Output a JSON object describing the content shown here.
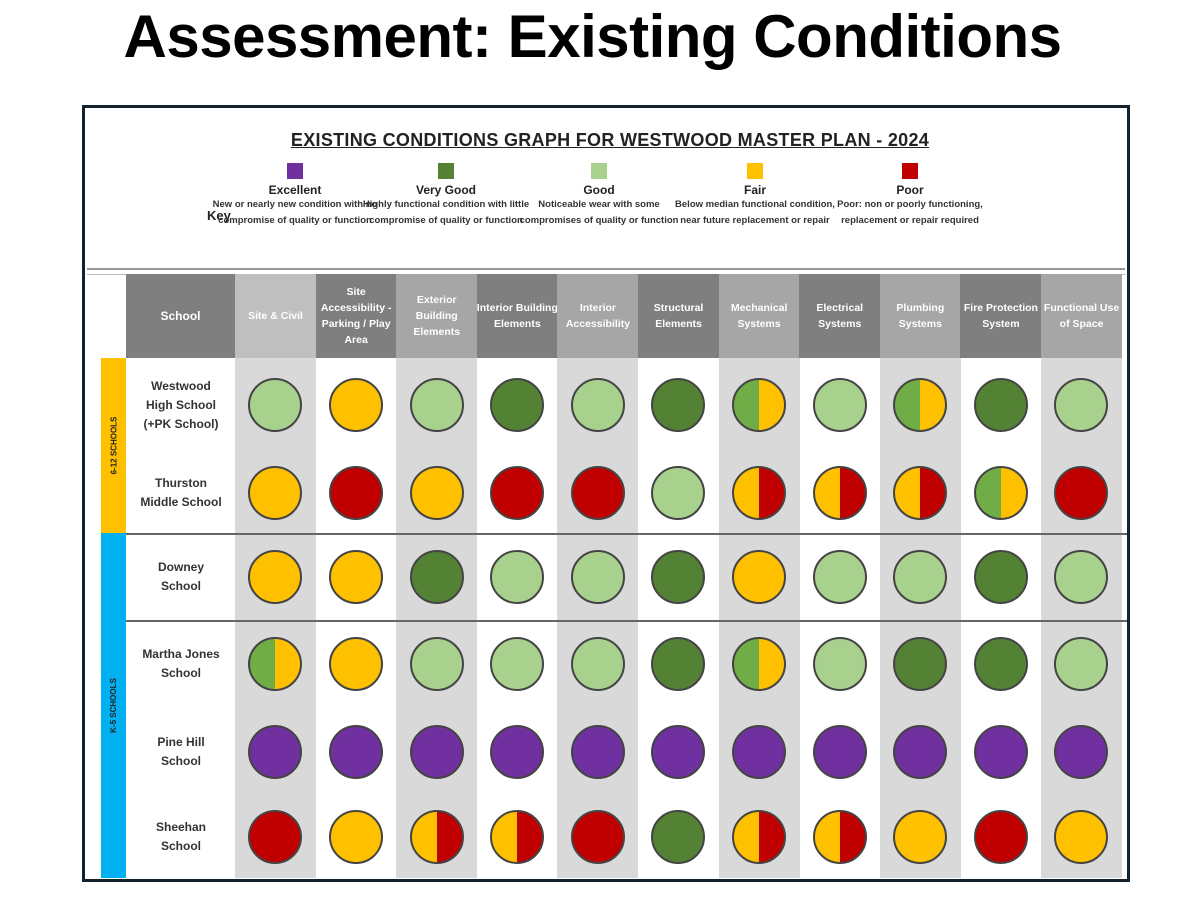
{
  "slide_title": "Assessment: Existing Conditions",
  "graph_title": "EXISTING CONDITIONS GRAPH FOR WESTWOOD MASTER PLAN  - 2024",
  "key_label": "Key",
  "colors": {
    "E": "#7030a0",
    "VG": "#548235",
    "G": "#a9d18e",
    "MG": "#70ad47",
    "F": "#ffc000",
    "P": "#c00000"
  },
  "key": [
    {
      "code": "E",
      "name": "Excellent",
      "desc": "New or nearly new condition with no compromise of quality or function"
    },
    {
      "code": "VG",
      "name": "Very Good",
      "desc": "Highly functional condition with little compromise of quality or function"
    },
    {
      "code": "G",
      "name": "Good",
      "desc": "Noticeable wear with some compromises of quality or function"
    },
    {
      "code": "F",
      "name": "Fair",
      "desc": "Below median functional condition, near future replacement or repair"
    },
    {
      "code": "P",
      "name": "Poor",
      "desc": "Poor: non or poorly functioning, replacement or repair required"
    }
  ],
  "school_header": "School",
  "columns": [
    "Site & Civil",
    "Site Accessibility -Parking / Play Area",
    "Exterior Building Elements",
    "Interior Building Elements",
    "Interior Accessibility",
    "Structural Elements",
    "Mechanical Systems",
    "Electrical Systems",
    "Plumbing Systems",
    "Fire Protection System",
    "Functional Use of Space"
  ],
  "groups": [
    {
      "label": "6-12 SCHOOLS",
      "color": "#ffc000"
    },
    {
      "label": "K-5 SCHOOLS",
      "color": "#00b0f0"
    }
  ],
  "schools": [
    {
      "name": "Westwood\nHigh School\n(+PK School)",
      "ratings": [
        "G",
        "F",
        "G",
        "VG",
        "G",
        "VG",
        "MG|F",
        "G",
        "MG|F",
        "VG",
        "G"
      ]
    },
    {
      "name": "Thurston\nMiddle School",
      "ratings": [
        "F",
        "P",
        "F",
        "P",
        "P",
        "G",
        "F|P",
        "F|P",
        "F|P",
        "MG|F",
        "P"
      ]
    },
    {
      "name": "Downey\nSchool",
      "ratings": [
        "F",
        "F",
        "VG",
        "G",
        "G",
        "VG",
        "F",
        "G",
        "G",
        "VG",
        "G"
      ]
    },
    {
      "name": "Martha Jones\nSchool",
      "ratings": [
        "MG|F",
        "F",
        "G",
        "G",
        "G",
        "VG",
        "MG|F",
        "G",
        "VG",
        "VG",
        "G"
      ]
    },
    {
      "name": "Pine Hill\nSchool",
      "ratings": [
        "E",
        "E",
        "E",
        "E",
        "E",
        "E",
        "E",
        "E",
        "E",
        "E",
        "E"
      ]
    },
    {
      "name": "Sheehan\nSchool",
      "ratings": [
        "P",
        "F",
        "F|P",
        "F|P",
        "P",
        "VG",
        "F|P",
        "F|P",
        "F",
        "P",
        "F"
      ]
    }
  ]
}
